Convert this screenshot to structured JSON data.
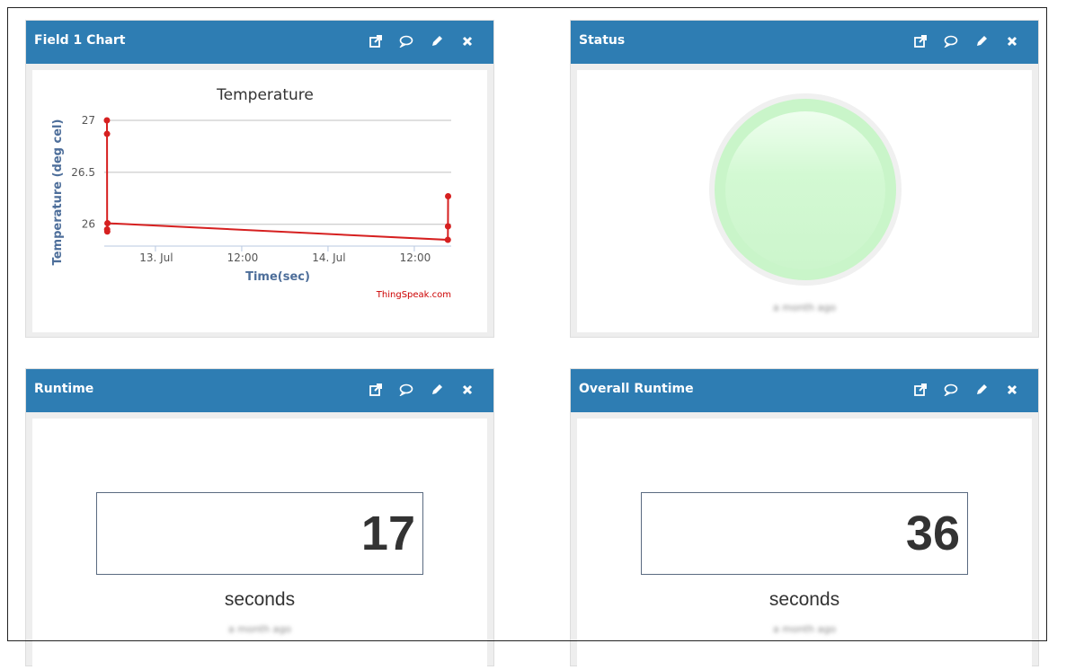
{
  "panels": [
    {
      "title": "Field 1 Chart"
    },
    {
      "title": "Status",
      "timestamp": "a month ago",
      "lamp_color": "#ccf7cc",
      "lamp_state": "on"
    },
    {
      "title": "Runtime",
      "value": "17",
      "unit": "seconds",
      "timestamp": "a month ago"
    },
    {
      "title": "Overall Runtime",
      "value": "36",
      "unit": "seconds",
      "timestamp": "a month ago"
    }
  ],
  "panel_icons": [
    "external-link-icon",
    "comment-icon",
    "pencil-icon",
    "close-icon"
  ],
  "colors": {
    "header": "#2e7db3",
    "series": "#d62020",
    "credit": "#cc0000"
  },
  "chart_data": {
    "type": "line",
    "title": "Temperature",
    "xlabel": "Time(sec)",
    "ylabel": "Temperature (deg cel)",
    "credit": "ThingSpeak.com",
    "yticks": [
      "27",
      "26.5",
      "26"
    ],
    "xticks": [
      "13. Jul",
      "12:00",
      "14. Jul",
      "12:00"
    ],
    "ylim": [
      25.79,
      27.0
    ],
    "xlim": [
      "2019-07-12T16:53",
      "2019-07-14T17:08"
    ],
    "grid": true,
    "series": [
      {
        "points": [
          {
            "x": "2019-07-12T17:15",
            "y": 27.0
          },
          {
            "x": "2019-07-12T17:16",
            "y": 26.87
          },
          {
            "x": "2019-07-12T17:17",
            "y": 25.95
          },
          {
            "x": "2019-07-12T17:18",
            "y": 25.93
          },
          {
            "x": "2019-07-12T17:20",
            "y": 26.01
          },
          {
            "x": "2019-07-14T16:40",
            "y": 25.85
          },
          {
            "x": "2019-07-14T16:41",
            "y": 25.98
          },
          {
            "x": "2019-07-14T16:42",
            "y": 26.27
          }
        ]
      }
    ]
  }
}
